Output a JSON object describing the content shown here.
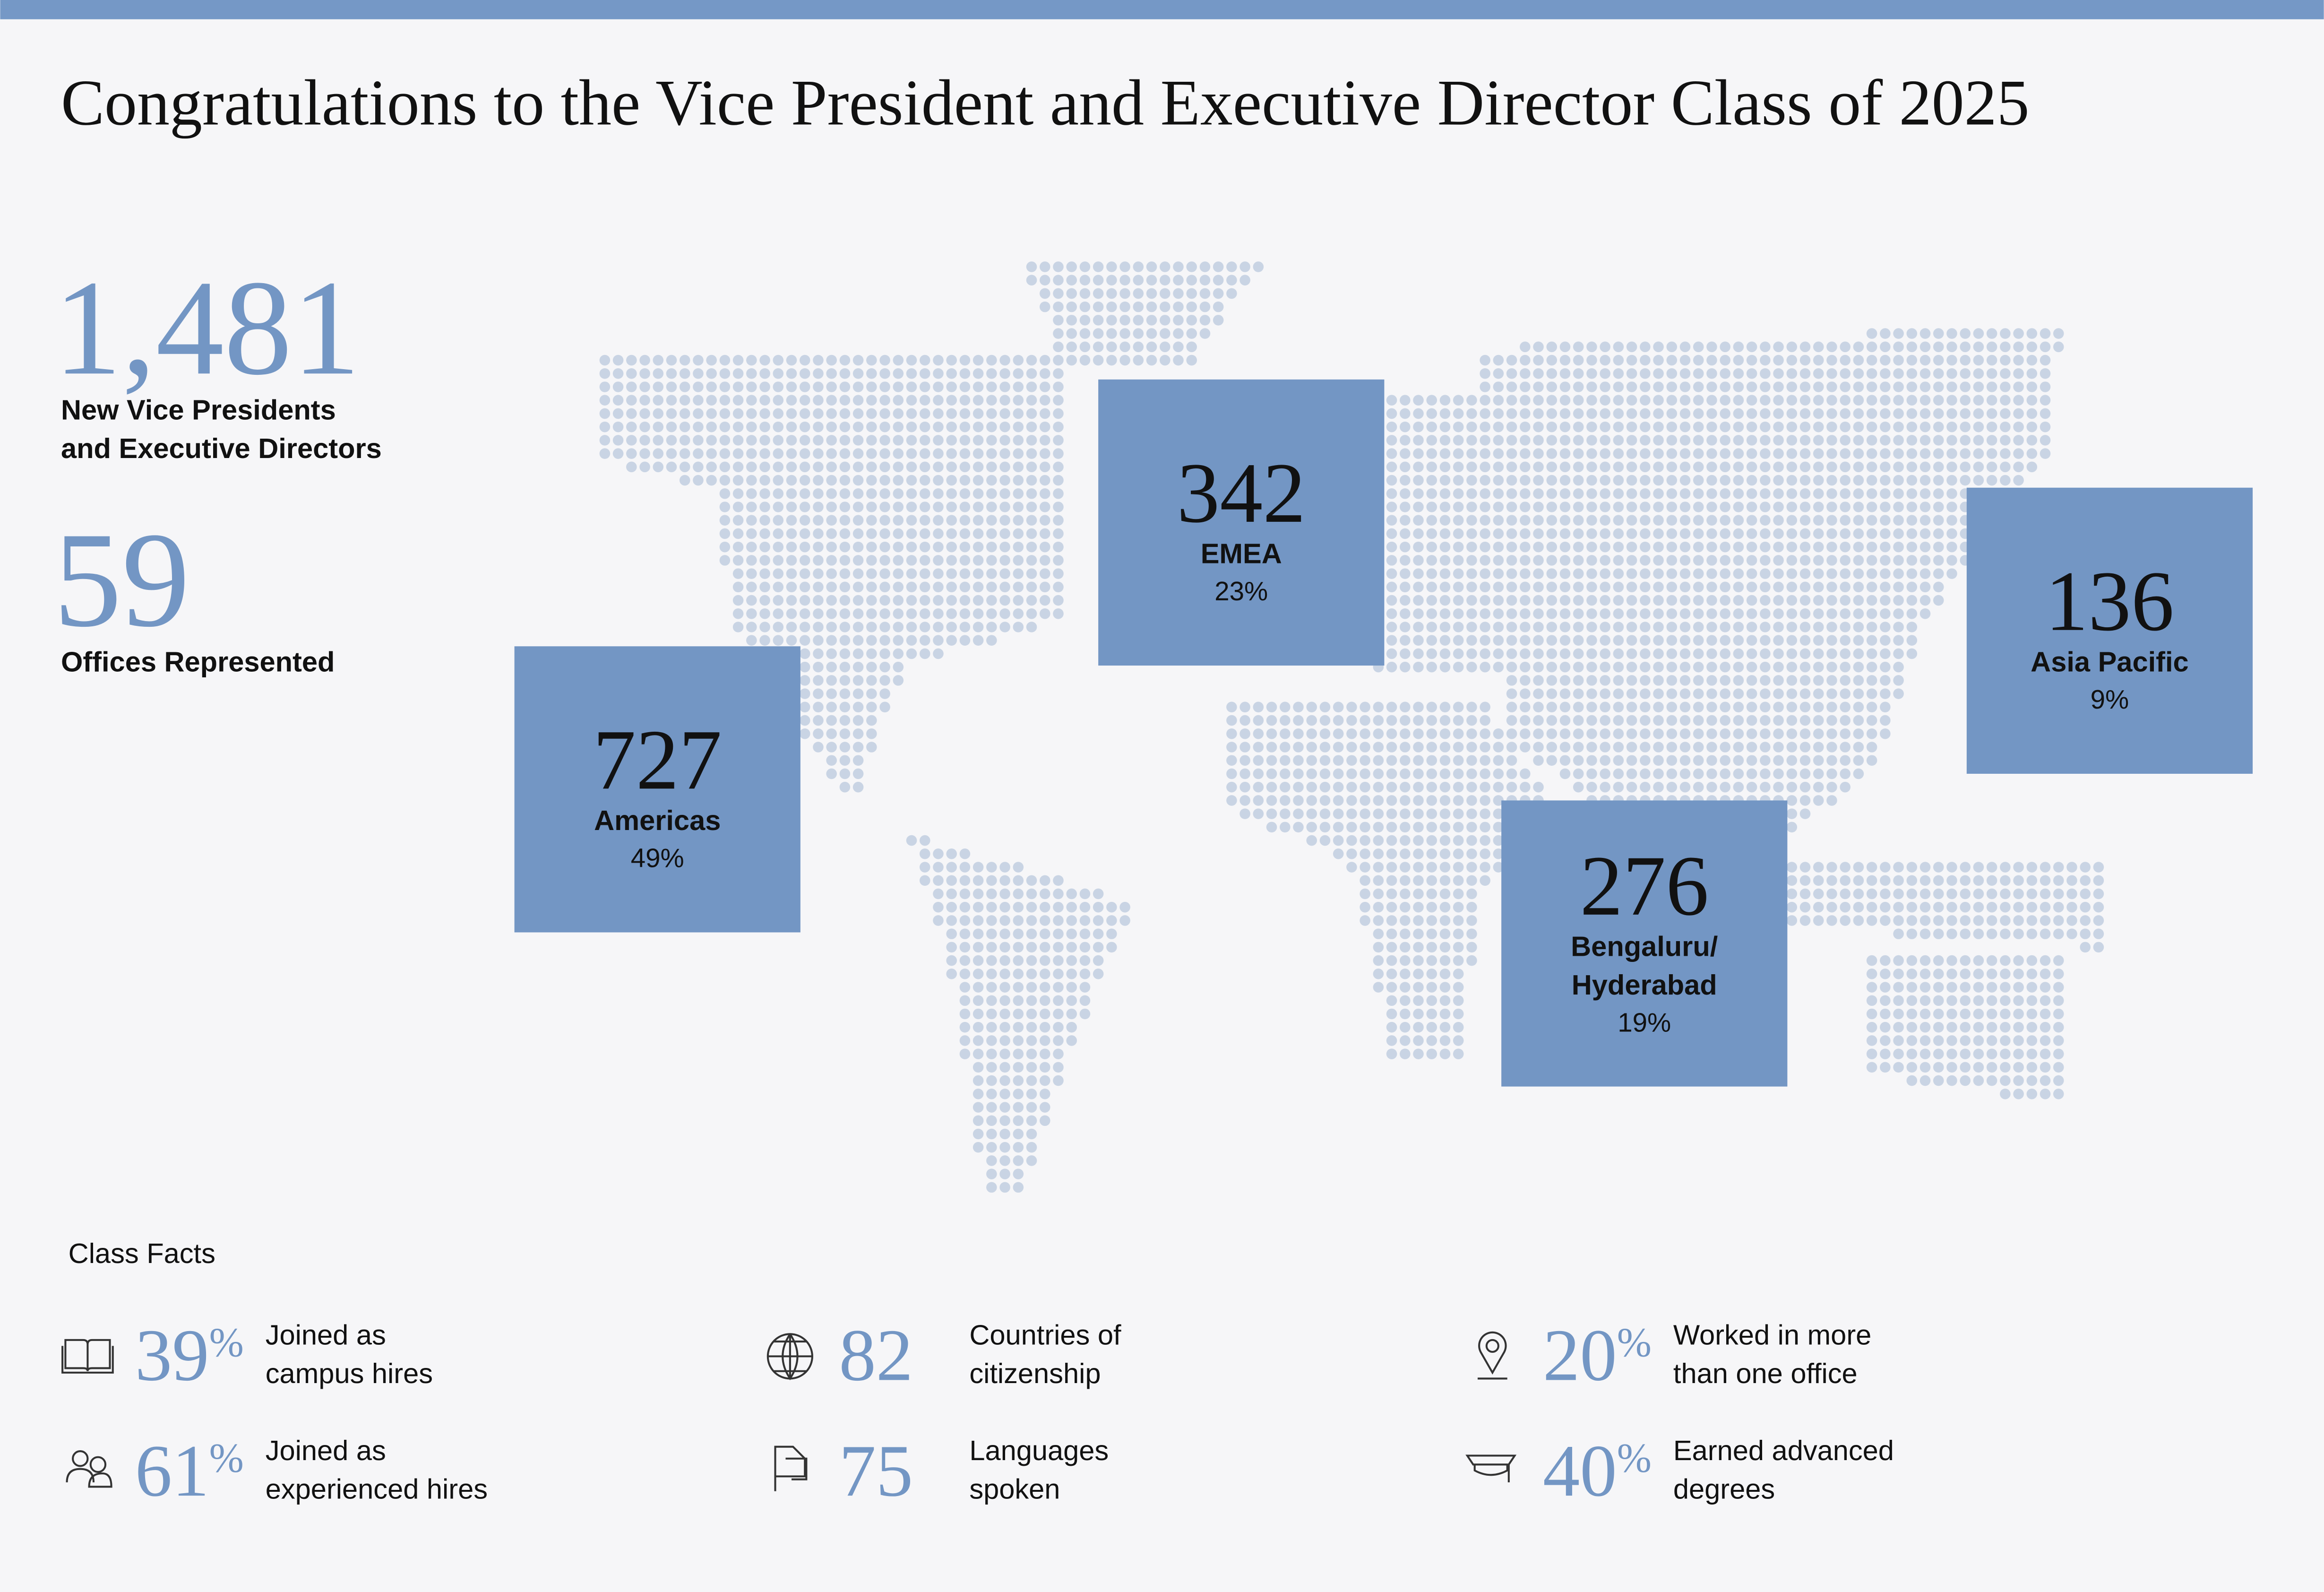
{
  "header": {
    "title": "Congratulations to the Vice President and Executive Director Class of 2025"
  },
  "stats": [
    {
      "value": "1,481",
      "label_lines": [
        "New Vice Presidents",
        "and Executive Directors"
      ]
    },
    {
      "value": "59",
      "label_lines": [
        "Offices Represented"
      ]
    }
  ],
  "regions": [
    {
      "value": "727",
      "name_lines": [
        "Americas"
      ],
      "share": "49%"
    },
    {
      "value": "342",
      "name_lines": [
        "EMEA"
      ],
      "share": "23%"
    },
    {
      "value": "136",
      "name_lines": [
        "Asia Pacific"
      ],
      "share": "9%"
    },
    {
      "value": "276",
      "name_lines": [
        "Bengaluru/",
        "Hyderabad"
      ],
      "share": "19%"
    }
  ],
  "class_facts": {
    "title": "Class Facts",
    "items": [
      {
        "value": "39",
        "unit": "%",
        "label_lines": [
          "Joined as",
          "campus hires"
        ]
      },
      {
        "value": "61",
        "unit": "%",
        "label_lines": [
          "Joined as",
          "experienced hires"
        ]
      },
      {
        "value": "82",
        "label_lines": [
          "Countries of",
          "citizenship"
        ]
      },
      {
        "value": "75",
        "label_lines": [
          "Languages",
          "spoken"
        ]
      },
      {
        "value": "20",
        "unit": "%",
        "label_lines": [
          "Worked in more",
          "than one office"
        ]
      },
      {
        "value": "40",
        "unit": "%",
        "label_lines": [
          "Earned advanced",
          "degrees"
        ]
      }
    ]
  }
}
